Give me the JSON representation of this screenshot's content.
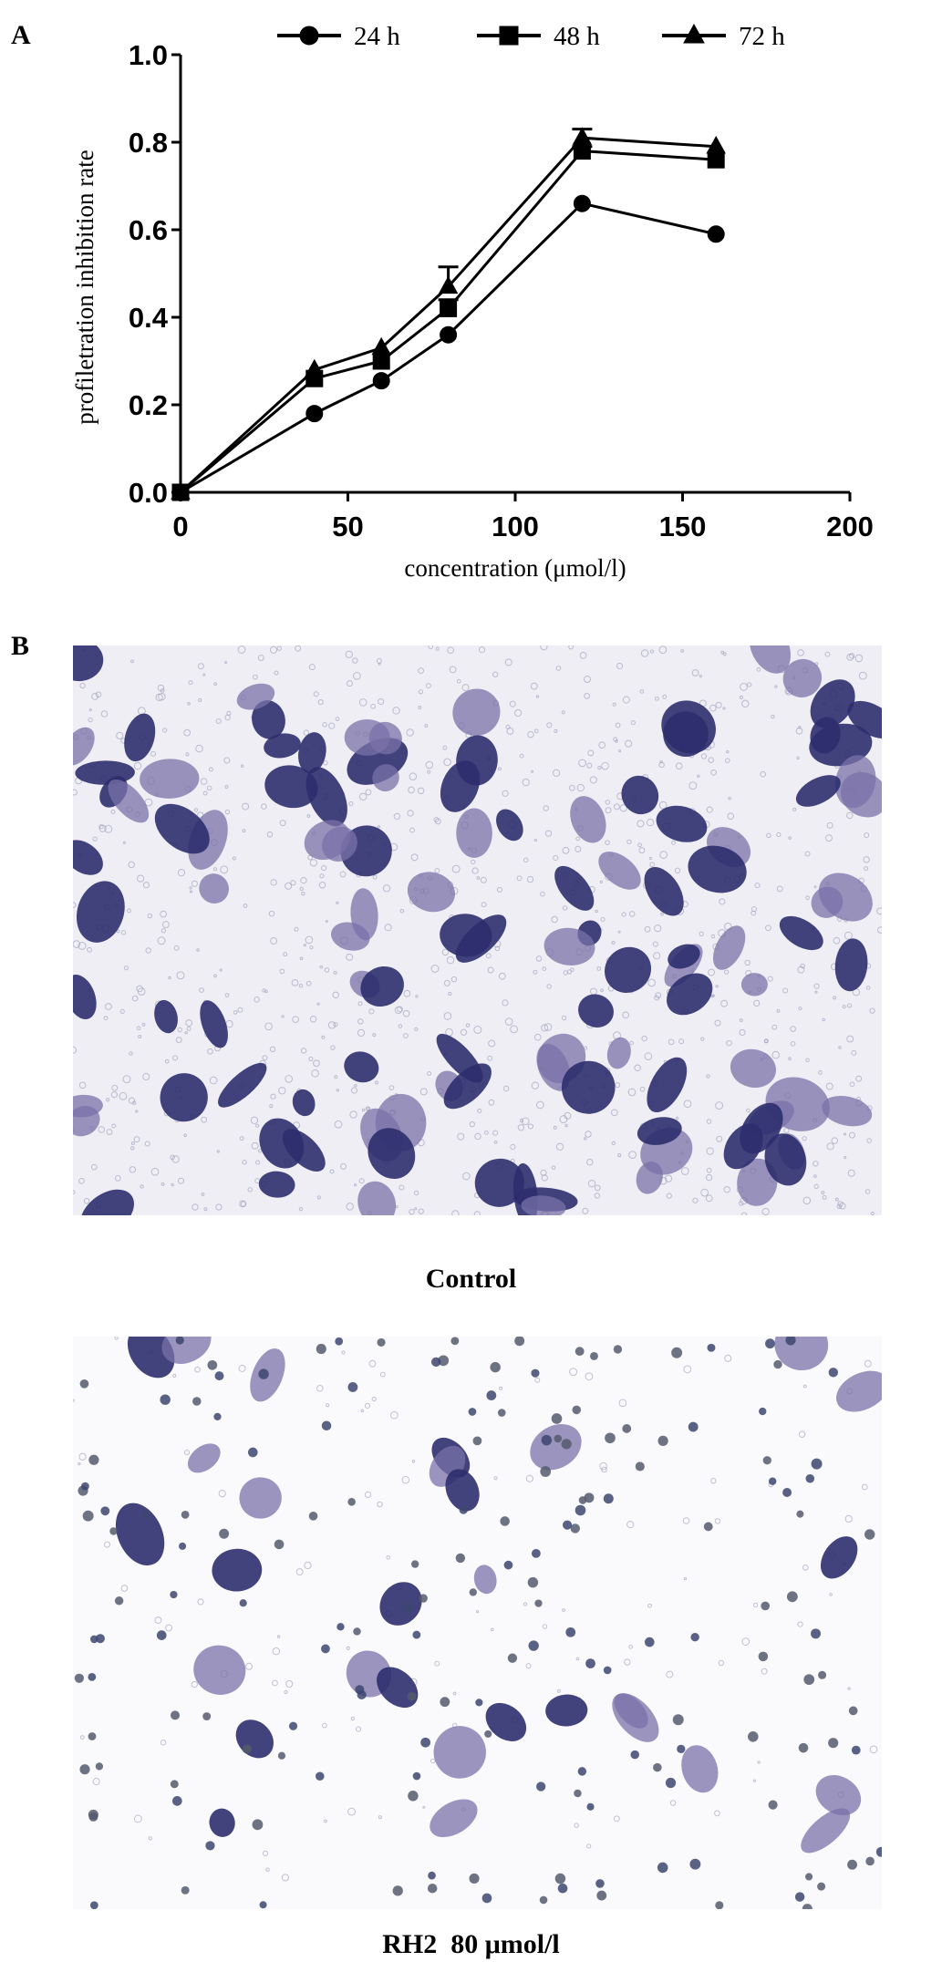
{
  "panels": {
    "a_label": "A",
    "b_label": "B"
  },
  "chart_data": {
    "type": "line",
    "xlabel": "concentration (μmol/l)",
    "ylabel": "profiletration inhibition rate",
    "xlim": [
      0,
      200
    ],
    "ylim": [
      0,
      1.0
    ],
    "x_ticks": [
      "0",
      "50",
      "100",
      "150",
      "200"
    ],
    "y_ticks": [
      "0.0",
      "0.2",
      "0.4",
      "0.6",
      "0.8",
      "1.0"
    ],
    "grid": false,
    "legend_position": "top",
    "x": [
      0,
      40,
      60,
      80,
      120,
      160
    ],
    "series": [
      {
        "name": "24 h",
        "marker": "circle",
        "values": [
          0,
          0.18,
          0.255,
          0.36,
          0.66,
          0.59
        ],
        "error": [
          0,
          0,
          0,
          0,
          0,
          0
        ]
      },
      {
        "name": "48 h",
        "marker": "square",
        "values": [
          0,
          0.26,
          0.3,
          0.42,
          0.78,
          0.76
        ],
        "error": [
          0,
          0,
          0,
          0.02,
          0.01,
          0
        ]
      },
      {
        "name": "72 h",
        "marker": "triangle",
        "values": [
          0,
          0.28,
          0.33,
          0.47,
          0.81,
          0.79
        ],
        "error": [
          0,
          0,
          0,
          0.045,
          0.02,
          0
        ]
      }
    ],
    "color": "#000000"
  },
  "micrographs": [
    {
      "caption": "Control",
      "stain_color": "#3a3a7a"
    },
    {
      "caption": "RH2  80 μmol/l",
      "stain_color": "#3a3a7a"
    }
  ]
}
